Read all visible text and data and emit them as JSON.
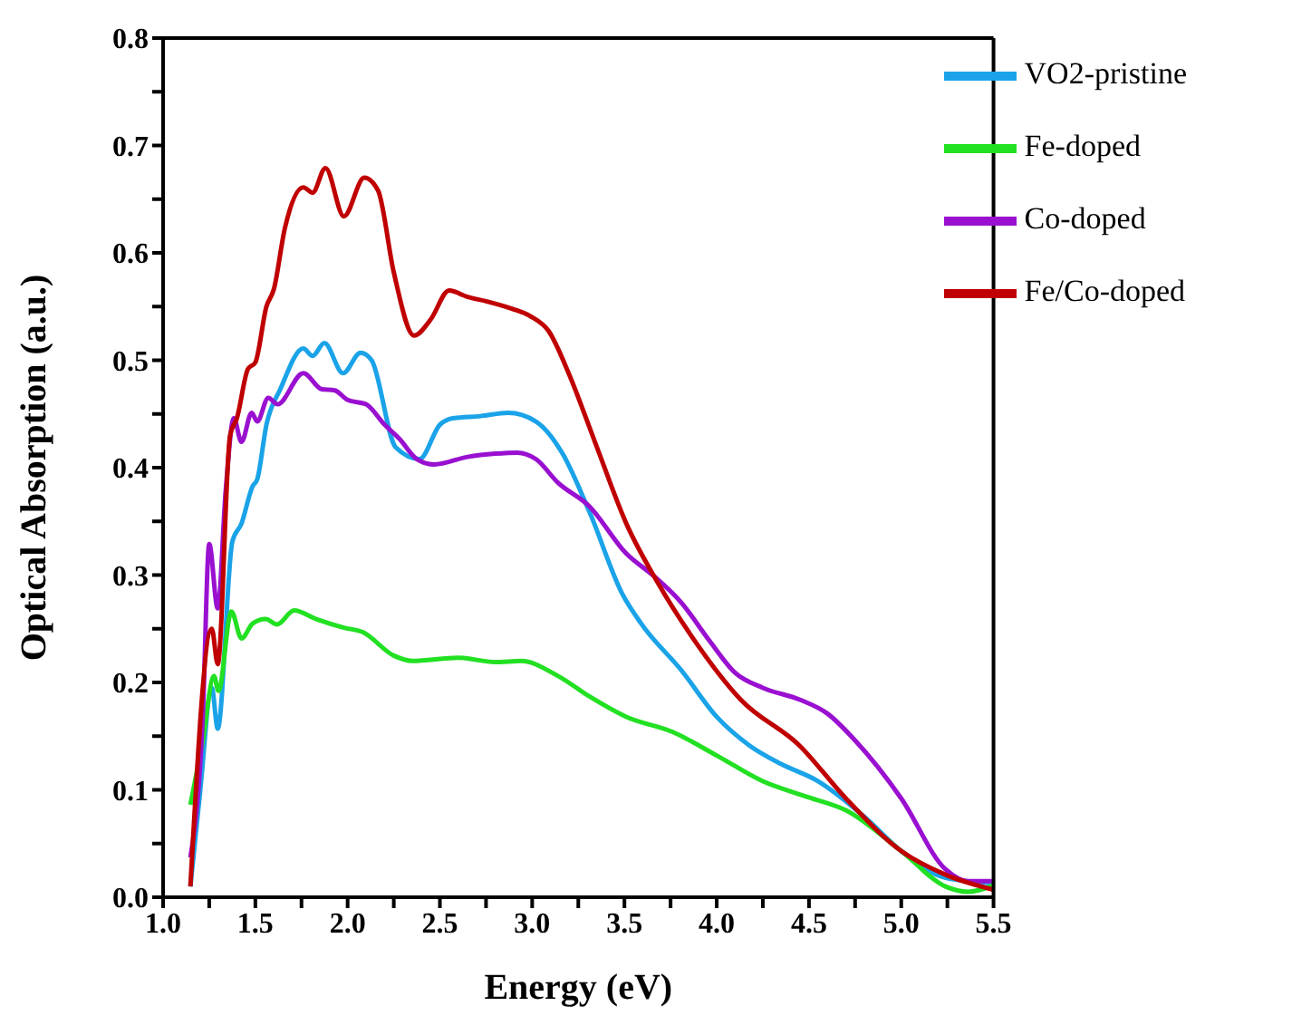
{
  "chart_data": {
    "type": "line",
    "xlabel": "Energy (eV)",
    "ylabel": "Optical Absorption (a.u.)",
    "xlim": [
      1.0,
      5.5
    ],
    "ylim": [
      0.0,
      0.8
    ],
    "xticks": [
      {
        "value": 1,
        "label": "1.0"
      },
      {
        "value": 1.25,
        "label": null
      },
      1.5,
      {
        "value": 1.75,
        "label": null
      },
      {
        "value": 2,
        "label": "2.0"
      },
      {
        "value": 2.25,
        "label": null
      },
      2.5,
      {
        "value": 2.75,
        "label": null
      },
      {
        "value": 3,
        "label": "3.0"
      },
      {
        "value": 3.25,
        "label": null
      },
      3.5,
      {
        "value": 3.75,
        "label": null
      },
      {
        "value": 4,
        "label": "4.0"
      },
      {
        "value": 4.25,
        "label": null
      },
      4.5,
      {
        "value": 4.75,
        "label": null
      },
      {
        "value": 5,
        "label": "5.0"
      },
      {
        "value": 5.25,
        "label": null
      },
      5.5
    ],
    "yticks": [
      {
        "value": 0,
        "label": "0.0"
      },
      {
        "value": 0.05,
        "label": null
      },
      0.1,
      {
        "value": 0.15,
        "label": null
      },
      0.2,
      {
        "value": 0.25,
        "label": null
      },
      0.3,
      {
        "value": 0.35,
        "label": null
      },
      0.4,
      {
        "value": 0.45,
        "label": null
      },
      0.5,
      {
        "value": 0.55,
        "label": null
      },
      0.6,
      {
        "value": 0.65,
        "label": null
      },
      0.7,
      {
        "value": 0.75,
        "label": null
      },
      0.8
    ],
    "grid": false,
    "legend": "top right",
    "marker": "none",
    "line_style": "solid",
    "series": [
      {
        "name": "VO2-pristine",
        "color": "#1aa3e8",
        "x": [
          1.148,
          1.2,
          1.264,
          1.296,
          1.375,
          1.425,
          1.486,
          1.51,
          1.56,
          1.635,
          1.76,
          1.81,
          1.874,
          1.975,
          2.07,
          2.13,
          2.26,
          2.39,
          2.5,
          2.57,
          2.72,
          2.87,
          3.02,
          3.165,
          3.31,
          3.49,
          3.59,
          3.81,
          4.0,
          4.18,
          4.35,
          4.55,
          4.8,
          5.0,
          5.24,
          5.5
        ],
        "values": [
          0.01,
          0.097,
          0.195,
          0.157,
          0.331,
          0.348,
          0.383,
          0.389,
          0.44,
          0.473,
          0.511,
          0.504,
          0.516,
          0.488,
          0.507,
          0.5,
          0.419,
          0.408,
          0.44,
          0.446,
          0.448,
          0.451,
          0.443,
          0.413,
          0.359,
          0.282,
          0.255,
          0.211,
          0.168,
          0.141,
          0.124,
          0.108,
          0.075,
          0.043,
          0.018,
          0.013
        ]
      },
      {
        "name": "Fe-doped",
        "color": "#22e022",
        "x": [
          1.148,
          1.215,
          1.276,
          1.3,
          1.37,
          1.425,
          1.486,
          1.556,
          1.617,
          1.71,
          1.83,
          1.98,
          2.08,
          2.25,
          2.35,
          2.6,
          2.8,
          2.94,
          3.14,
          3.31,
          3.51,
          3.76,
          4.0,
          4.25,
          4.5,
          4.7,
          5.0,
          5.24,
          5.36,
          5.5
        ],
        "values": [
          0.086,
          0.146,
          0.206,
          0.192,
          0.266,
          0.241,
          0.255,
          0.259,
          0.254,
          0.267,
          0.259,
          0.251,
          0.247,
          0.225,
          0.22,
          0.223,
          0.219,
          0.22,
          0.206,
          0.187,
          0.168,
          0.154,
          0.132,
          0.108,
          0.093,
          0.081,
          0.043,
          0.01,
          0.005,
          0.011
        ]
      },
      {
        "name": "Co-doped",
        "color": "#9a10d0",
        "x": [
          1.148,
          1.215,
          1.25,
          1.296,
          1.34,
          1.383,
          1.425,
          1.48,
          1.51,
          1.57,
          1.62,
          1.76,
          1.86,
          1.93,
          2.0,
          2.1,
          2.2,
          2.28,
          2.375,
          2.47,
          2.65,
          2.8,
          2.92,
          3.02,
          3.14,
          3.31,
          3.51,
          3.66,
          3.81,
          3.96,
          4.1,
          4.25,
          4.45,
          4.6,
          4.75,
          5.0,
          5.24,
          5.36,
          5.5
        ],
        "values": [
          0.037,
          0.168,
          0.329,
          0.269,
          0.38,
          0.446,
          0.424,
          0.451,
          0.443,
          0.465,
          0.459,
          0.488,
          0.473,
          0.472,
          0.463,
          0.459,
          0.44,
          0.427,
          0.408,
          0.403,
          0.41,
          0.413,
          0.414,
          0.408,
          0.386,
          0.364,
          0.32,
          0.299,
          0.274,
          0.239,
          0.209,
          0.195,
          0.184,
          0.171,
          0.146,
          0.092,
          0.026,
          0.015,
          0.015
        ]
      },
      {
        "name": "Fe/Co-doped",
        "color": "#c00000",
        "x": [
          1.148,
          1.264,
          1.296,
          1.363,
          1.4,
          1.46,
          1.5,
          1.56,
          1.6,
          1.66,
          1.76,
          1.81,
          1.88,
          1.98,
          2.09,
          2.165,
          2.25,
          2.36,
          2.45,
          2.55,
          2.65,
          2.75,
          2.89,
          2.99,
          3.09,
          3.2,
          3.34,
          3.51,
          3.68,
          3.86,
          4.13,
          4.45,
          4.7,
          5.0,
          5.24,
          5.5
        ],
        "values": [
          0.01,
          0.25,
          0.217,
          0.43,
          0.446,
          0.492,
          0.498,
          0.55,
          0.566,
          0.623,
          0.661,
          0.656,
          0.679,
          0.634,
          0.67,
          0.658,
          0.582,
          0.523,
          0.538,
          0.565,
          0.559,
          0.555,
          0.548,
          0.541,
          0.527,
          0.487,
          0.424,
          0.348,
          0.293,
          0.244,
          0.184,
          0.141,
          0.092,
          0.043,
          0.021,
          0.007
        ]
      }
    ]
  }
}
